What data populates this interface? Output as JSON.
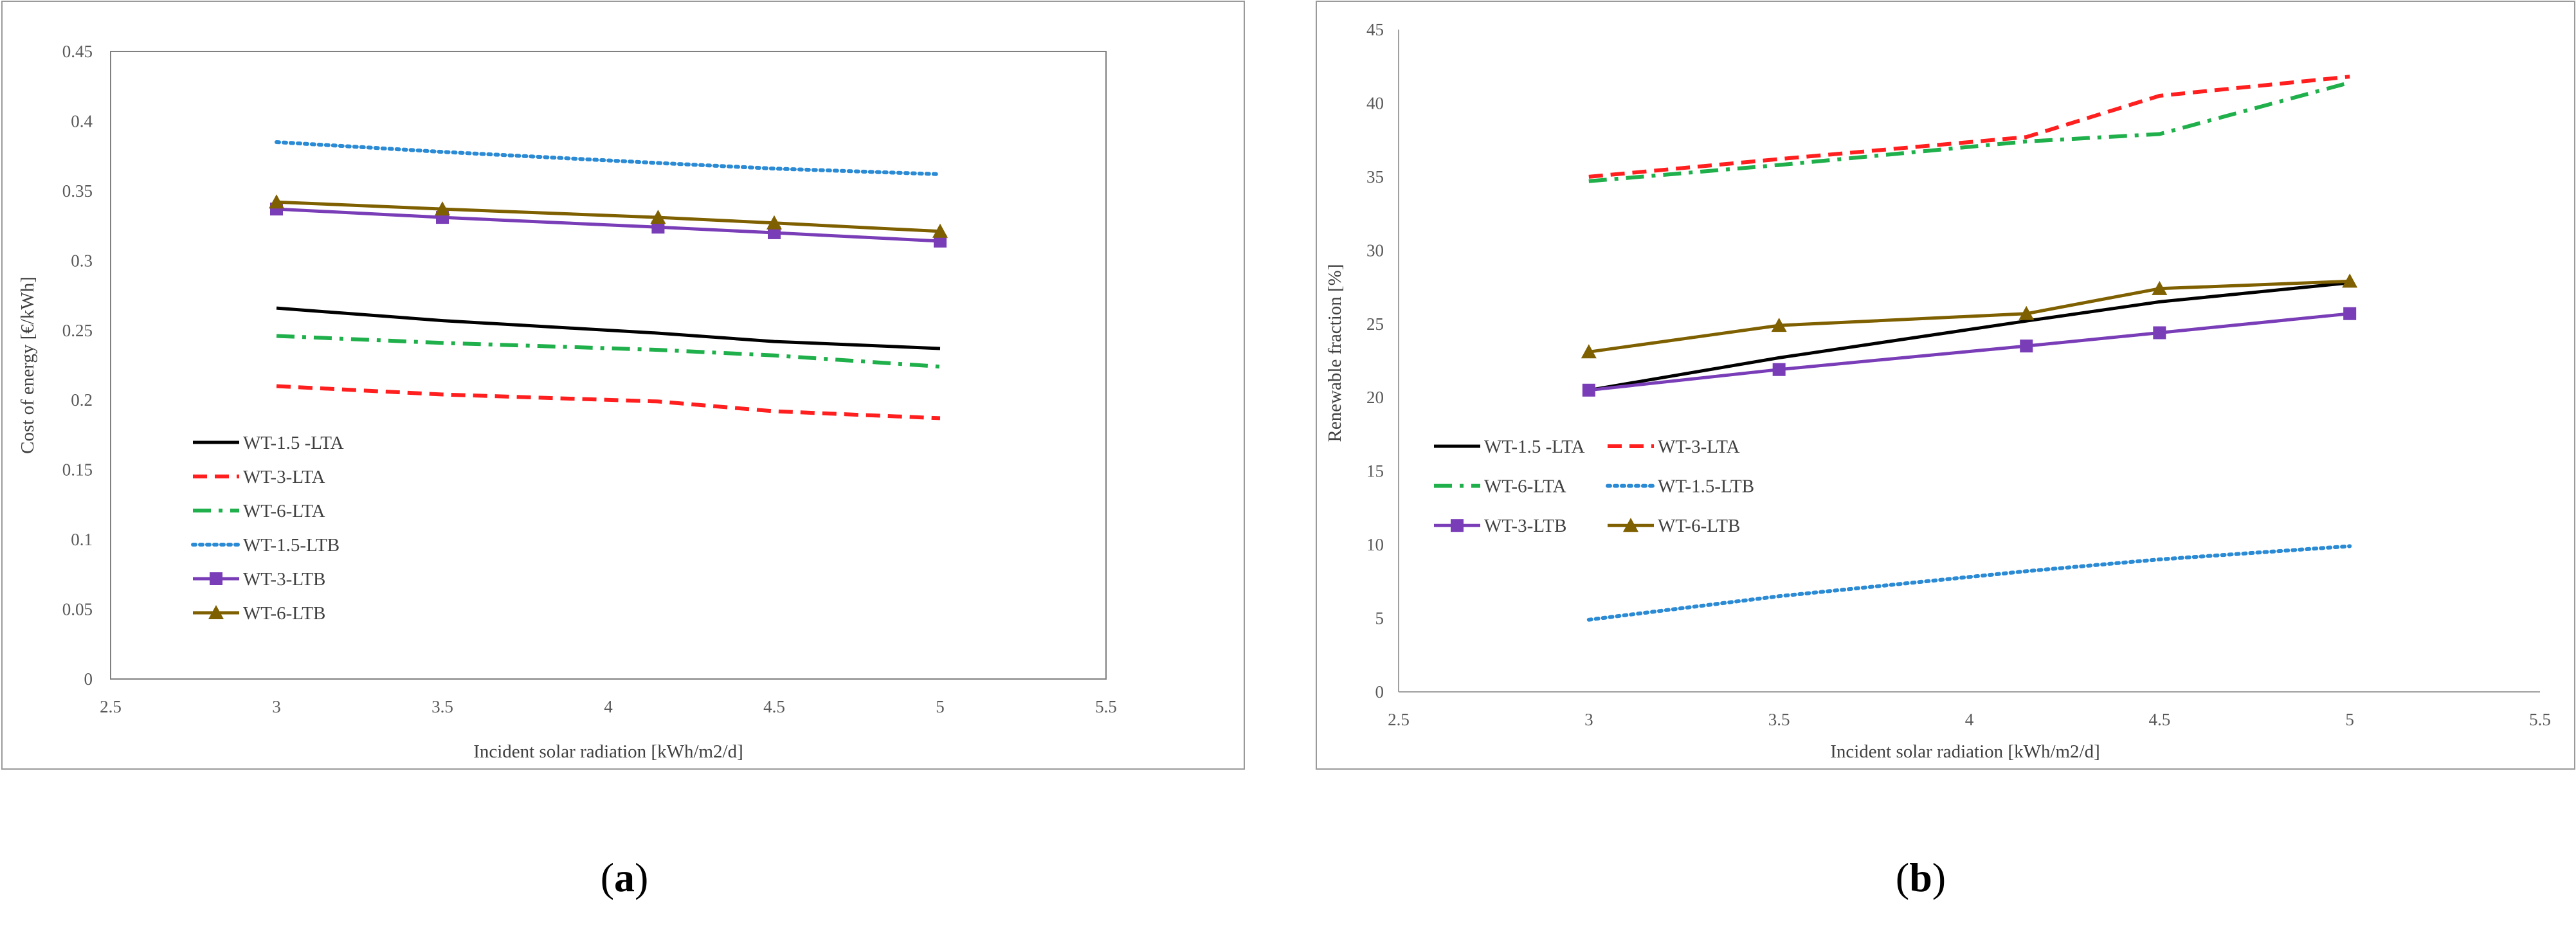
{
  "chart_data": [
    {
      "id": "a",
      "type": "line",
      "panel_label": "a",
      "title": "",
      "xlabel": "Incident solar radiation  [kWh/m2/d]",
      "ylabel": "Cost of energy  [€/kWh]",
      "xlim": [
        2.5,
        5.5
      ],
      "ylim": [
        0,
        0.45
      ],
      "xticks": [
        "2.5",
        "3",
        "3.5",
        "4",
        "4.5",
        "5",
        "5.5"
      ],
      "yticks": [
        "0",
        "0.05",
        "0.1",
        "0.15",
        "0.2",
        "0.25",
        "0.3",
        "0.35",
        "0.4",
        "0.45"
      ],
      "grid": false,
      "legend": "center-left",
      "series": [
        {
          "name": "WT-1.5 -LTA",
          "x": [
            3,
            3.5,
            4.15,
            4.5,
            5
          ],
          "values": [
            0.266,
            0.257,
            0.248,
            0.242,
            0.237
          ],
          "color": "#000000",
          "style": "solid",
          "marker": "none"
        },
        {
          "name": "WT-3-LTA",
          "x": [
            3,
            3.5,
            4.15,
            4.5,
            5
          ],
          "values": [
            0.21,
            0.204,
            0.199,
            0.192,
            0.187
          ],
          "color": "#ff1f1f",
          "style": "dashed",
          "marker": "none"
        },
        {
          "name": "WT-6-LTA",
          "x": [
            3,
            3.5,
            4.15,
            4.5,
            5
          ],
          "values": [
            0.246,
            0.241,
            0.236,
            0.232,
            0.224
          ],
          "color": "#1fb04b",
          "style": "dashdot",
          "marker": "none"
        },
        {
          "name": "WT-1.5-LTB",
          "x": [
            3,
            3.5,
            4.15,
            4.5,
            5
          ],
          "values": [
            0.385,
            0.378,
            0.37,
            0.366,
            0.362
          ],
          "color": "#2a8ad4",
          "style": "dotted",
          "marker": "none"
        },
        {
          "name": "WT-3-LTB",
          "x": [
            3,
            3.5,
            4.15,
            4.5,
            5
          ],
          "values": [
            0.337,
            0.331,
            0.324,
            0.32,
            0.314
          ],
          "color": "#7a3db8",
          "style": "solid",
          "marker": "square"
        },
        {
          "name": "WT-6-LTB",
          "x": [
            3,
            3.5,
            4.15,
            4.5,
            5
          ],
          "values": [
            0.342,
            0.337,
            0.331,
            0.327,
            0.321
          ],
          "color": "#7f6000",
          "style": "solid",
          "marker": "triangle"
        }
      ]
    },
    {
      "id": "b",
      "type": "line",
      "panel_label": "b",
      "title": "",
      "xlabel": "Incident solar radiation  [kWh/m2/d]",
      "ylabel": "Renewable fraction  [%]",
      "xlim": [
        2.5,
        5.5
      ],
      "ylim": [
        0,
        45
      ],
      "xticks": [
        "2.5",
        "3",
        "3.5",
        "4",
        "4.5",
        "5",
        "5.5"
      ],
      "yticks": [
        "0",
        "5",
        "10",
        "15",
        "20",
        "25",
        "30",
        "35",
        "40",
        "45"
      ],
      "grid": false,
      "legend": "center-left",
      "series": [
        {
          "name": "WT-1.5 -LTA",
          "x": [
            3,
            3.5,
            4.15,
            4.5,
            5
          ],
          "values": [
            20.5,
            22.7,
            25.2,
            26.5,
            27.8
          ],
          "color": "#000000",
          "style": "solid",
          "marker": "none"
        },
        {
          "name": "WT-3-LTA",
          "x": [
            3,
            3.5,
            4.15,
            4.5,
            5
          ],
          "values": [
            35,
            36.2,
            37.7,
            40.5,
            41.8
          ],
          "color": "#ff1f1f",
          "style": "dashed",
          "marker": "none"
        },
        {
          "name": "WT-6-LTA",
          "x": [
            3,
            3.5,
            4.15,
            4.5,
            5
          ],
          "values": [
            34.7,
            35.8,
            37.4,
            37.9,
            41.4
          ],
          "color": "#1fb04b",
          "style": "dashdot",
          "marker": "none"
        },
        {
          "name": "WT-1.5-LTB",
          "x": [
            3,
            3.5,
            4.15,
            4.5,
            5
          ],
          "values": [
            4.9,
            6.5,
            8.2,
            9,
            9.9
          ],
          "color": "#2a8ad4",
          "style": "dotted",
          "marker": "none"
        },
        {
          "name": "WT-3-LTB",
          "x": [
            3,
            3.5,
            4.15,
            4.5,
            5
          ],
          "values": [
            20.5,
            21.9,
            23.5,
            24.4,
            25.7
          ],
          "color": "#7a3db8",
          "style": "solid",
          "marker": "square"
        },
        {
          "name": "WT-6-LTB",
          "x": [
            3,
            3.5,
            4.15,
            4.5,
            5
          ],
          "values": [
            23.1,
            24.9,
            25.7,
            27.4,
            27.9
          ],
          "color": "#7f6000",
          "style": "solid",
          "marker": "triangle"
        }
      ]
    }
  ]
}
